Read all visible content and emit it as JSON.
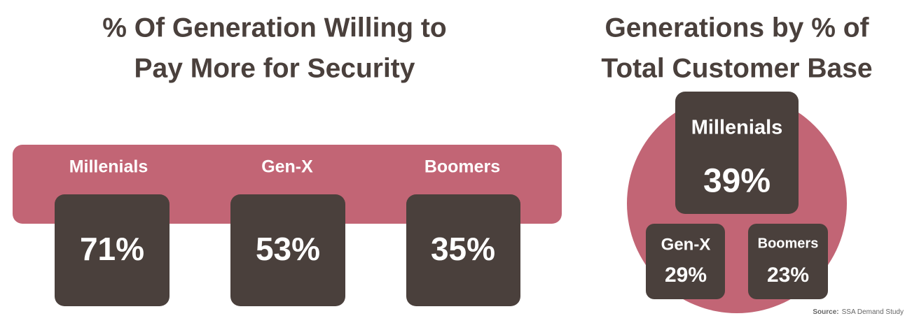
{
  "left": {
    "title": [
      "% Of Generation Willing to",
      "Pay More for Security"
    ],
    "items": [
      {
        "label": "Millenials",
        "value": "71%"
      },
      {
        "label": "Gen-X",
        "value": "53%"
      },
      {
        "label": "Boomers",
        "value": "35%"
      }
    ]
  },
  "right": {
    "title": [
      "Generations by % of",
      "Total Customer Base"
    ],
    "items": [
      {
        "label": "Millenials",
        "value": "39%"
      },
      {
        "label": "Gen-X",
        "value": "29%"
      },
      {
        "label": "Boomers",
        "value": "23%"
      }
    ]
  },
  "source": {
    "label": "Source:",
    "text": "SSA Demand Study"
  }
}
